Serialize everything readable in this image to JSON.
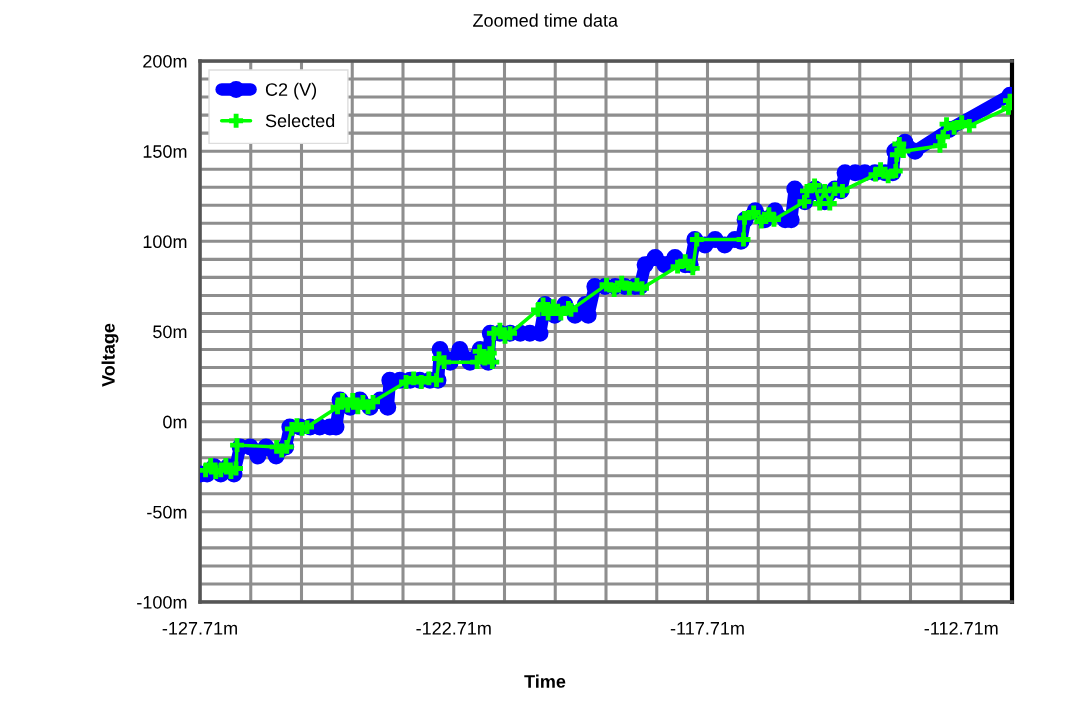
{
  "chart_data": {
    "type": "line",
    "title": "Zoomed time data",
    "xlabel": "Time",
    "ylabel": "Voltage",
    "xlim": [
      -127.71,
      -111.71
    ],
    "ylim": [
      -100,
      200
    ],
    "xticks": [
      {
        "value": -127.71,
        "label": "-127.71m"
      },
      {
        "value": -126.71,
        "label": null
      },
      {
        "value": -125.71,
        "label": null
      },
      {
        "value": -124.71,
        "label": null
      },
      {
        "value": -123.71,
        "label": null
      },
      {
        "value": -122.71,
        "label": "-122.71m"
      },
      {
        "value": -121.71,
        "label": null
      },
      {
        "value": -120.71,
        "label": null
      },
      {
        "value": -119.71,
        "label": null
      },
      {
        "value": -118.71,
        "label": null
      },
      {
        "value": -117.71,
        "label": "-117.71m"
      },
      {
        "value": -116.71,
        "label": null
      },
      {
        "value": -115.71,
        "label": null
      },
      {
        "value": -114.71,
        "label": null
      },
      {
        "value": -113.71,
        "label": null
      },
      {
        "value": -112.71,
        "label": "-112.71m"
      },
      {
        "value": -111.71,
        "label": null
      }
    ],
    "yticks": [
      {
        "value": -100,
        "label": "-100m"
      },
      {
        "value": -90,
        "label": null
      },
      {
        "value": -80,
        "label": null
      },
      {
        "value": -70,
        "label": null
      },
      {
        "value": -60,
        "label": null
      },
      {
        "value": -50,
        "label": "-50m"
      },
      {
        "value": -40,
        "label": null
      },
      {
        "value": -30,
        "label": null
      },
      {
        "value": -20,
        "label": null
      },
      {
        "value": -10,
        "label": null
      },
      {
        "value": 0,
        "label": "0m"
      },
      {
        "value": 10,
        "label": null
      },
      {
        "value": 20,
        "label": null
      },
      {
        "value": 30,
        "label": null
      },
      {
        "value": 40,
        "label": null
      },
      {
        "value": 50,
        "label": "50m"
      },
      {
        "value": 60,
        "label": null
      },
      {
        "value": 70,
        "label": null
      },
      {
        "value": 80,
        "label": null
      },
      {
        "value": 90,
        "label": null
      },
      {
        "value": 100,
        "label": "100m"
      },
      {
        "value": 110,
        "label": null
      },
      {
        "value": 120,
        "label": null
      },
      {
        "value": 130,
        "label": null
      },
      {
        "value": 140,
        "label": null
      },
      {
        "value": 150,
        "label": "150m"
      },
      {
        "value": 160,
        "label": null
      },
      {
        "value": 170,
        "label": null
      },
      {
        "value": 180,
        "label": null
      },
      {
        "value": 190,
        "label": null
      },
      {
        "value": 200,
        "label": "200m"
      }
    ],
    "grid": true,
    "legend": "top left",
    "series": [
      {
        "name": "C2 (V)",
        "type": "line",
        "color": "#0000ff",
        "marker": "circle",
        "x": [
          -127.7,
          -127.57,
          -127.43,
          -127.3,
          -127.16,
          -127.04,
          -126.92,
          -126.72,
          -126.57,
          -126.41,
          -126.21,
          -126.02,
          -125.94,
          -125.74,
          -125.54,
          -125.35,
          -125.15,
          -125.03,
          -124.95,
          -124.75,
          -124.56,
          -124.36,
          -124.16,
          -124.01,
          -123.97,
          -123.77,
          -123.57,
          -123.38,
          -123.18,
          -123.02,
          -122.98,
          -122.78,
          -122.59,
          -122.39,
          -122.19,
          -122.03,
          -121.99,
          -121.8,
          -121.6,
          -121.4,
          -121.21,
          -121.01,
          -120.91,
          -120.72,
          -120.52,
          -120.32,
          -120.12,
          -120.06,
          -119.93,
          -119.73,
          -119.53,
          -119.34,
          -119.14,
          -119.04,
          -118.94,
          -118.74,
          -118.55,
          -118.35,
          -118.15,
          -118.05,
          -117.96,
          -117.76,
          -117.56,
          -117.37,
          -117.17,
          -117.05,
          -116.97,
          -116.77,
          -116.58,
          -116.38,
          -116.18,
          -116.06,
          -115.99,
          -115.79,
          -115.59,
          -115.4,
          -115.2,
          -115.08,
          -115.0,
          -114.8,
          -114.61,
          -114.41,
          -114.21,
          -114.06,
          -114.02,
          -113.82,
          -113.62,
          -112.95,
          -111.75
        ],
        "values": [
          -29,
          -29,
          -25,
          -29,
          -25,
          -29,
          -14,
          -14,
          -19,
          -14,
          -19,
          -14,
          -3,
          -3,
          -3,
          -3,
          -3,
          -3,
          12,
          8,
          12,
          8,
          12,
          8,
          23,
          23,
          23,
          23,
          23,
          23,
          40,
          33,
          40,
          33,
          40,
          33,
          49,
          49,
          49,
          49,
          49,
          49,
          65,
          59,
          65,
          59,
          65,
          59,
          75,
          75,
          75,
          75,
          75,
          75,
          87,
          91,
          87,
          91,
          87,
          87,
          101,
          98,
          101,
          98,
          101,
          100,
          112,
          117,
          112,
          117,
          112,
          112,
          129,
          122,
          129,
          122,
          129,
          128,
          138,
          138,
          138,
          138,
          138,
          138,
          150,
          155,
          150,
          162,
          181
        ]
      },
      {
        "name": "Selected",
        "type": "line",
        "color": "#00ff00",
        "marker": "cross",
        "x": [
          -127.6,
          -127.5,
          -127.4,
          -127.3,
          -127.2,
          -127.1,
          -127.0,
          -126.98,
          -126.2,
          -126.1,
          -126.0,
          -125.9,
          -125.8,
          -125.7,
          -125.6,
          -125.0,
          -124.9,
          -124.8,
          -124.7,
          -124.6,
          -124.5,
          -124.4,
          -124.3,
          -123.65,
          -123.5,
          -123.35,
          -123.2,
          -123.05,
          -123.0,
          -122.9,
          -122.25,
          -122.2,
          -122.1,
          -122.0,
          -121.95,
          -121.92,
          -121.8,
          -121.7,
          -121.6,
          -121.05,
          -120.95,
          -120.85,
          -120.75,
          -120.6,
          -120.45,
          -120.4,
          -119.7,
          -119.55,
          -119.4,
          -119.25,
          -119.1,
          -119.0,
          -118.3,
          -118.15,
          -118.0,
          -117.92,
          -117.0,
          -116.98,
          -116.8,
          -116.65,
          -116.5,
          -116.4,
          -115.8,
          -115.75,
          -115.6,
          -115.5,
          -115.4,
          -115.3,
          -115.2,
          -115.05,
          -114.4,
          -114.3,
          -114.15,
          -114.0,
          -113.98,
          -113.93,
          -113.85,
          -113.13,
          -113.07,
          -113.0,
          -112.85,
          -112.7,
          -112.55,
          -111.78,
          -111.75
        ],
        "values": [
          -27,
          -24,
          -28,
          -27,
          -24,
          -28,
          -26,
          -13,
          -14,
          -16,
          -14,
          -4,
          -2,
          -4,
          -3,
          8,
          12,
          9,
          12,
          8,
          11,
          8,
          11,
          22,
          24,
          22,
          24,
          23,
          35,
          33,
          33,
          39,
          35,
          38,
          33,
          49,
          51,
          47,
          49,
          62,
          65,
          60,
          64,
          60,
          63,
          62,
          76,
          73,
          77,
          74,
          76,
          74,
          86,
          89,
          85,
          101,
          101,
          113,
          116,
          111,
          115,
          112,
          122,
          128,
          131,
          121,
          128,
          121,
          129,
          128,
          137,
          140,
          136,
          139,
          148,
          154,
          150,
          153,
          158,
          165,
          163,
          166,
          164,
          174,
          178
        ]
      }
    ]
  }
}
